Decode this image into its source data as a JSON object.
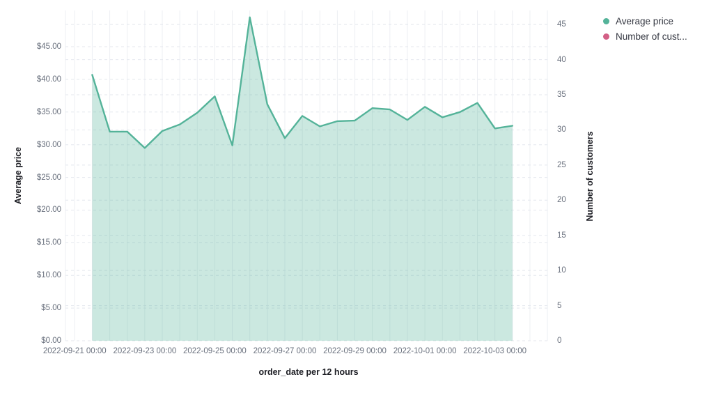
{
  "chart_data": {
    "type": "area",
    "title": "",
    "xlabel": "order_date per 12 hours",
    "x": [
      "2022-09-21 12:00",
      "2022-09-22 00:00",
      "2022-09-22 12:00",
      "2022-09-23 00:00",
      "2022-09-23 12:00",
      "2022-09-24 00:00",
      "2022-09-24 12:00",
      "2022-09-25 00:00",
      "2022-09-25 12:00",
      "2022-09-26 00:00",
      "2022-09-26 12:00",
      "2022-09-27 00:00",
      "2022-09-27 12:00",
      "2022-09-28 00:00",
      "2022-09-28 12:00",
      "2022-09-29 00:00",
      "2022-09-29 12:00",
      "2022-09-30 00:00",
      "2022-09-30 12:00",
      "2022-10-01 00:00",
      "2022-10-01 12:00",
      "2022-10-02 00:00",
      "2022-10-02 12:00",
      "2022-10-03 00:00",
      "2022-10-03 12:00"
    ],
    "series": [
      {
        "name": "Average price",
        "legend_label": "Average price",
        "axis": "left",
        "color": "#54B399",
        "fill_opacity": 0.3,
        "values": [
          40.7,
          32.0,
          32.0,
          29.5,
          32.1,
          33.1,
          34.9,
          37.4,
          29.9,
          49.5,
          36.2,
          31.0,
          34.4,
          32.8,
          33.6,
          33.7,
          35.6,
          35.4,
          33.8,
          35.8,
          34.2,
          35.0,
          36.4,
          32.5,
          32.9
        ]
      },
      {
        "name": "Number of customers",
        "legend_label": "Number of cust...",
        "axis": "right",
        "color": "#D36086",
        "values": []
      }
    ],
    "left_axis": {
      "title": "Average price",
      "tick_values": [
        0,
        5,
        10,
        15,
        20,
        25,
        30,
        35,
        40,
        45
      ],
      "tick_labels": [
        "$0.00",
        "$5.00",
        "$10.00",
        "$15.00",
        "$20.00",
        "$25.00",
        "$30.00",
        "$35.00",
        "$40.00",
        "$45.00"
      ],
      "range": [
        0,
        50.55
      ]
    },
    "right_axis": {
      "title": "Number of customers",
      "tick_values": [
        0,
        5,
        10,
        15,
        20,
        25,
        30,
        35,
        40,
        45
      ],
      "tick_labels": [
        "0",
        "5",
        "10",
        "15",
        "20",
        "25",
        "30",
        "35",
        "40",
        "45"
      ],
      "range": [
        0,
        47.0
      ]
    },
    "x_tick_labels": [
      "2022-09-21 00:00",
      "2022-09-23 00:00",
      "2022-09-25 00:00",
      "2022-09-27 00:00",
      "2022-09-29 00:00",
      "2022-10-01 00:00",
      "2022-10-03 00:00"
    ],
    "grid": true,
    "legend_position": "top-right"
  },
  "colors": {
    "grid_vertical": "#EDEFF3",
    "grid_horizontal": "#E4E7EE",
    "tick_label": "#69707D",
    "axis_title": "#1D1E24",
    "legend_text": "#343741",
    "series_green": "#54B399",
    "series_pink": "#D36086"
  }
}
